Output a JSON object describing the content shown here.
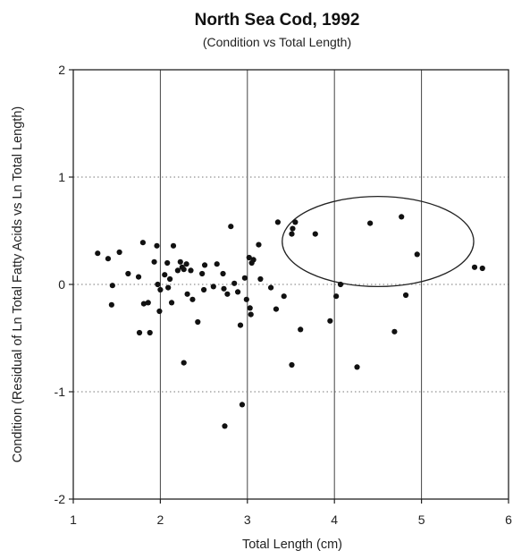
{
  "chart_data": {
    "type": "scatter",
    "title": "North Sea Cod, 1992",
    "subtitle": "(Condition vs Total Length)",
    "xlabel": "Total Length (cm)",
    "ylabel": "Condition (Residual of Ln Total Fatty Acids vs Ln Total Length)",
    "xlim": [
      1,
      6
    ],
    "ylim": [
      -2,
      2
    ],
    "xticks": [
      "1",
      "2",
      "3",
      "4",
      "5",
      "6"
    ],
    "yticks": [
      "2",
      "1",
      "0",
      "-1",
      "-2"
    ],
    "grid": {
      "vertical": true,
      "horizontal": "dotted"
    },
    "annotation": {
      "shape": "ellipse",
      "center": [
        4.5,
        0.4
      ],
      "rx": 1.1,
      "ry": 0.42
    },
    "series": [
      {
        "points": [
          [
            1.28,
            0.29
          ],
          [
            1.4,
            0.24
          ],
          [
            1.45,
            -0.01
          ],
          [
            1.44,
            -0.19
          ],
          [
            1.53,
            0.3
          ],
          [
            1.63,
            0.1
          ],
          [
            1.75,
            0.07
          ],
          [
            1.76,
            -0.45
          ],
          [
            1.8,
            0.39
          ],
          [
            1.81,
            -0.18
          ],
          [
            1.86,
            -0.17
          ],
          [
            1.88,
            -0.45
          ],
          [
            1.93,
            0.21
          ],
          [
            1.96,
            0.36
          ],
          [
            1.97,
            0.0
          ],
          [
            1.99,
            -0.25
          ],
          [
            2.0,
            -0.05
          ],
          [
            2.05,
            0.09
          ],
          [
            2.08,
            0.2
          ],
          [
            2.09,
            -0.03
          ],
          [
            2.11,
            0.05
          ],
          [
            2.13,
            -0.17
          ],
          [
            2.15,
            0.36
          ],
          [
            2.2,
            0.13
          ],
          [
            2.23,
            0.21
          ],
          [
            2.25,
            0.16
          ],
          [
            2.27,
            0.14
          ],
          [
            2.27,
            -0.73
          ],
          [
            2.3,
            0.19
          ],
          [
            2.31,
            -0.09
          ],
          [
            2.35,
            0.13
          ],
          [
            2.37,
            -0.14
          ],
          [
            2.43,
            -0.35
          ],
          [
            2.48,
            0.1
          ],
          [
            2.5,
            -0.05
          ],
          [
            2.51,
            0.18
          ],
          [
            2.61,
            -0.02
          ],
          [
            2.65,
            0.19
          ],
          [
            2.72,
            0.1
          ],
          [
            2.73,
            -0.04
          ],
          [
            2.74,
            -1.32
          ],
          [
            2.77,
            -0.09
          ],
          [
            2.81,
            0.54
          ],
          [
            2.85,
            0.01
          ],
          [
            2.89,
            -0.07
          ],
          [
            2.92,
            -0.38
          ],
          [
            2.94,
            -1.12
          ],
          [
            2.97,
            0.06
          ],
          [
            2.99,
            -0.14
          ],
          [
            3.02,
            0.25
          ],
          [
            3.03,
            -0.22
          ],
          [
            3.04,
            -0.28
          ],
          [
            3.05,
            0.2
          ],
          [
            3.07,
            0.23
          ],
          [
            3.13,
            0.37
          ],
          [
            3.15,
            0.05
          ],
          [
            3.27,
            -0.03
          ],
          [
            3.33,
            -0.23
          ],
          [
            3.35,
            0.58
          ],
          [
            3.42,
            -0.11
          ],
          [
            3.51,
            0.47
          ],
          [
            3.52,
            0.52
          ],
          [
            3.51,
            -0.75
          ],
          [
            3.55,
            0.58
          ],
          [
            3.61,
            -0.42
          ],
          [
            3.78,
            0.47
          ],
          [
            3.95,
            -0.34
          ],
          [
            4.02,
            -0.11
          ],
          [
            4.07,
            0.0
          ],
          [
            4.26,
            -0.77
          ],
          [
            4.41,
            0.57
          ],
          [
            4.69,
            -0.44
          ],
          [
            4.77,
            0.63
          ],
          [
            4.82,
            -0.1
          ],
          [
            4.95,
            0.28
          ],
          [
            5.61,
            0.16
          ],
          [
            5.7,
            0.15
          ]
        ]
      }
    ]
  }
}
